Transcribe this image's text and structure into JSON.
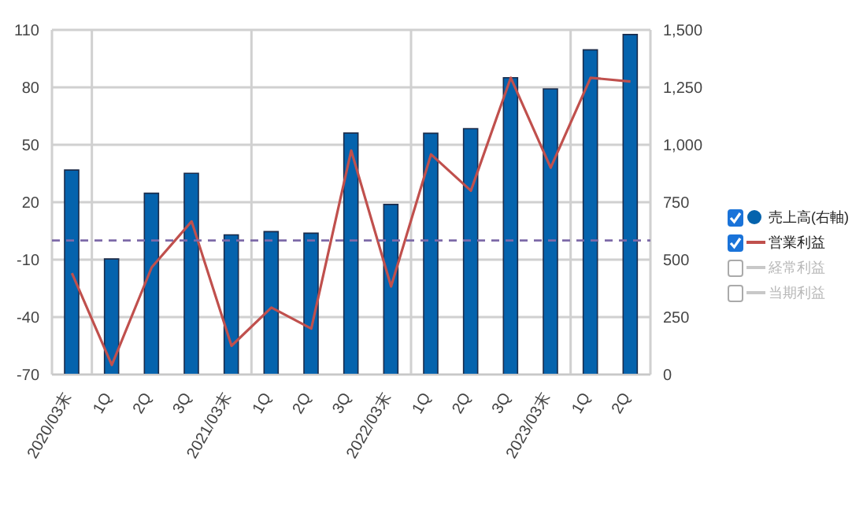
{
  "chart_data": {
    "type": "bar",
    "categories": [
      "2020/03末",
      "1Q",
      "2Q",
      "3Q",
      "2021/03末",
      "1Q",
      "2Q",
      "3Q",
      "2022/03末",
      "1Q",
      "2Q",
      "3Q",
      "2023/03末",
      "1Q",
      "2Q"
    ],
    "series": [
      {
        "name": "売上高(右軸)",
        "axis": "y2",
        "color": "#0563ad",
        "values": [
          890,
          503,
          789,
          876,
          608,
          622,
          615,
          1051,
          740,
          1050,
          1070,
          1292,
          1243,
          1413,
          1480
        ]
      },
      {
        "name": "営業利益",
        "type": "line",
        "color": "#c0504d",
        "values": [
          -17,
          -65,
          -14,
          10,
          -55,
          -35,
          -46,
          47,
          -24,
          45,
          26,
          85,
          38,
          85,
          83
        ]
      },
      {
        "name": "経常利益",
        "type": "line",
        "color": "#c8c8c8",
        "values": [
          null,
          null,
          null,
          null,
          null,
          null,
          null,
          null,
          null,
          null,
          null,
          null,
          null,
          null,
          null
        ]
      },
      {
        "name": "当期利益",
        "type": "line",
        "color": "#c8c8c8",
        "values": [
          null,
          null,
          null,
          null,
          null,
          null,
          null,
          null,
          null,
          null,
          null,
          null,
          null,
          null,
          null
        ]
      }
    ],
    "ylim": [
      -70,
      110
    ],
    "yticks": [
      -70,
      -40,
      -10,
      20,
      50,
      80,
      110
    ],
    "y2lim": [
      0,
      1500
    ],
    "y2ticks": [
      0,
      250,
      500,
      750,
      {
        "value": 1000,
        "label": "1,000"
      },
      {
        "value": 1250,
        "label": "1,250"
      },
      {
        "value": 1500,
        "label": "1,500"
      }
    ],
    "ref_lines": [
      {
        "axis": "y",
        "value": 0,
        "color": "#7d6aa8",
        "line_style": "dashed"
      }
    ],
    "grid": true,
    "legend": "right",
    "marker": "none",
    "line_style": "solid"
  }
}
